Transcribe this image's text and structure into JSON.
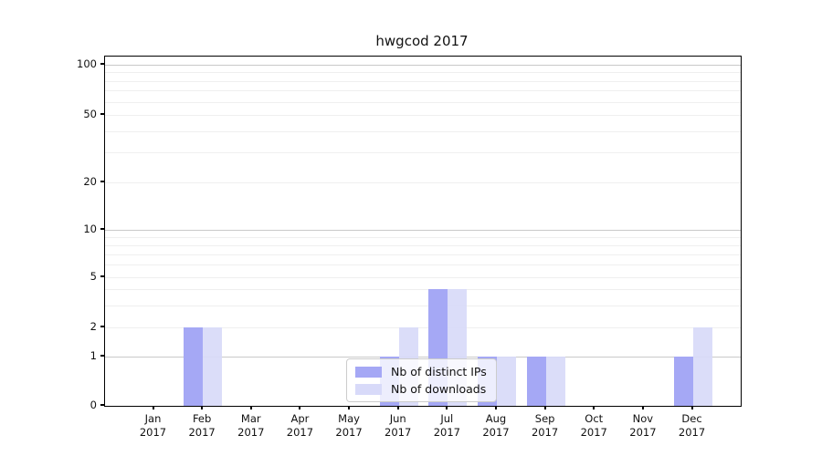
{
  "chart_data": {
    "type": "bar",
    "title": "hwgcod 2017",
    "categories": [
      "Jan",
      "Feb",
      "Mar",
      "Apr",
      "May",
      "Jun",
      "Jul",
      "Aug",
      "Sep",
      "Oct",
      "Nov",
      "Dec"
    ],
    "year_label": "2017",
    "series": [
      {
        "name": "Nb of distinct IPs",
        "color": "#a5a8f5",
        "values": [
          0,
          2,
          0,
          0,
          0,
          1,
          4,
          1,
          1,
          0,
          0,
          1
        ]
      },
      {
        "name": "Nb of downloads",
        "color": "#d8daf9",
        "values": [
          0,
          2,
          0,
          0,
          0,
          2,
          4,
          1,
          1,
          0,
          0,
          2
        ]
      }
    ],
    "yscale": "symlog",
    "yticks": [
      0,
      1,
      2,
      5,
      10,
      20,
      50,
      100
    ],
    "ylim": [
      0,
      110
    ],
    "grid": "horizontal",
    "legend_position": "lower center",
    "background": "#ffffff"
  }
}
